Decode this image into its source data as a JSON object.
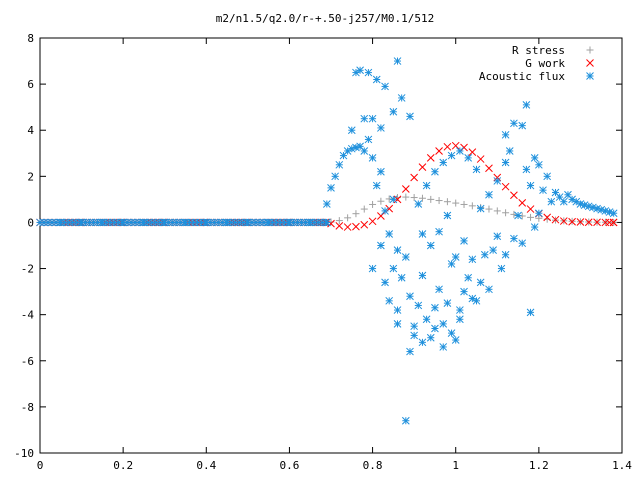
{
  "chart_data": {
    "type": "scatter",
    "title": "m2/n1.5/q2.0/r-+.50-j257/M0.1/512",
    "xlabel": "",
    "ylabel": "",
    "xlim": [
      0,
      1.4
    ],
    "ylim": [
      -10,
      8
    ],
    "x_ticks": [
      "0",
      "0.2",
      "0.4",
      "0.6",
      "0.8",
      "1",
      "1.2",
      "1.4"
    ],
    "y_ticks": [
      "-10",
      "-8",
      "-6",
      "-4",
      "-2",
      "0",
      "2",
      "4",
      "6",
      "8"
    ],
    "grid": false,
    "legend_position": "top-right",
    "series": [
      {
        "name": "R stress",
        "marker": "+",
        "color": "#a0a0a0",
        "points": [
          [
            0.0,
            0
          ],
          [
            0.1,
            0
          ],
          [
            0.2,
            0
          ],
          [
            0.3,
            0
          ],
          [
            0.4,
            0
          ],
          [
            0.5,
            0
          ],
          [
            0.6,
            0
          ],
          [
            0.69,
            0
          ],
          [
            0.7,
            0.02
          ],
          [
            0.72,
            0.08
          ],
          [
            0.74,
            0.2
          ],
          [
            0.76,
            0.38
          ],
          [
            0.78,
            0.58
          ],
          [
            0.8,
            0.78
          ],
          [
            0.82,
            0.92
          ],
          [
            0.84,
            1.02
          ],
          [
            0.86,
            1.08
          ],
          [
            0.88,
            1.1
          ],
          [
            0.9,
            1.08
          ],
          [
            0.92,
            1.05
          ],
          [
            0.94,
            1.0
          ],
          [
            0.96,
            0.95
          ],
          [
            0.98,
            0.9
          ],
          [
            1.0,
            0.84
          ],
          [
            1.02,
            0.78
          ],
          [
            1.04,
            0.72
          ],
          [
            1.06,
            0.65
          ],
          [
            1.08,
            0.58
          ],
          [
            1.1,
            0.5
          ],
          [
            1.12,
            0.42
          ],
          [
            1.14,
            0.35
          ],
          [
            1.16,
            0.28
          ],
          [
            1.18,
            0.22
          ],
          [
            1.2,
            0.18
          ],
          [
            1.22,
            0.14
          ],
          [
            1.24,
            0.1
          ],
          [
            1.26,
            0.07
          ],
          [
            1.28,
            0.05
          ],
          [
            1.3,
            0.03
          ],
          [
            1.32,
            0.02
          ],
          [
            1.34,
            0.01
          ],
          [
            1.36,
            0.01
          ],
          [
            1.38,
            0.0
          ]
        ]
      },
      {
        "name": "G work",
        "marker": "x",
        "color": "#ff0000",
        "points": [
          [
            0.0,
            0
          ],
          [
            0.1,
            0
          ],
          [
            0.2,
            0
          ],
          [
            0.3,
            0
          ],
          [
            0.4,
            0
          ],
          [
            0.5,
            0
          ],
          [
            0.6,
            0
          ],
          [
            0.69,
            0
          ],
          [
            0.7,
            -0.05
          ],
          [
            0.72,
            -0.15
          ],
          [
            0.74,
            -0.2
          ],
          [
            0.76,
            -0.18
          ],
          [
            0.78,
            -0.1
          ],
          [
            0.8,
            0.05
          ],
          [
            0.82,
            0.28
          ],
          [
            0.84,
            0.6
          ],
          [
            0.86,
            1.0
          ],
          [
            0.88,
            1.45
          ],
          [
            0.9,
            1.95
          ],
          [
            0.92,
            2.4
          ],
          [
            0.94,
            2.8
          ],
          [
            0.96,
            3.1
          ],
          [
            0.98,
            3.28
          ],
          [
            1.0,
            3.33
          ],
          [
            1.02,
            3.25
          ],
          [
            1.04,
            3.05
          ],
          [
            1.06,
            2.75
          ],
          [
            1.08,
            2.35
          ],
          [
            1.1,
            1.95
          ],
          [
            1.12,
            1.55
          ],
          [
            1.14,
            1.18
          ],
          [
            1.16,
            0.85
          ],
          [
            1.18,
            0.58
          ],
          [
            1.2,
            0.38
          ],
          [
            1.22,
            0.22
          ],
          [
            1.24,
            0.12
          ],
          [
            1.26,
            0.06
          ],
          [
            1.28,
            0.03
          ],
          [
            1.3,
            0.02
          ],
          [
            1.32,
            0.01
          ],
          [
            1.34,
            0.01
          ],
          [
            1.36,
            0.0
          ],
          [
            1.38,
            0.0
          ]
        ]
      },
      {
        "name": "Acoustic flux",
        "marker": "*",
        "color": "#1e90dc",
        "points": [
          [
            0.0,
            0
          ],
          [
            0.05,
            0
          ],
          [
            0.1,
            0
          ],
          [
            0.15,
            0
          ],
          [
            0.2,
            0
          ],
          [
            0.25,
            0
          ],
          [
            0.3,
            0
          ],
          [
            0.35,
            0
          ],
          [
            0.4,
            0
          ],
          [
            0.45,
            0
          ],
          [
            0.5,
            0
          ],
          [
            0.55,
            0
          ],
          [
            0.6,
            0
          ],
          [
            0.65,
            0
          ],
          [
            0.69,
            0
          ],
          [
            0.69,
            0.8
          ],
          [
            0.7,
            1.5
          ],
          [
            0.71,
            2.0
          ],
          [
            0.72,
            2.5
          ],
          [
            0.73,
            2.9
          ],
          [
            0.74,
            3.1
          ],
          [
            0.75,
            3.2
          ],
          [
            0.76,
            3.25
          ],
          [
            0.77,
            3.3
          ],
          [
            0.78,
            3.1
          ],
          [
            0.75,
            4.0
          ],
          [
            0.78,
            4.5
          ],
          [
            0.76,
            6.5
          ],
          [
            0.77,
            6.6
          ],
          [
            0.79,
            6.5
          ],
          [
            0.81,
            6.2
          ],
          [
            0.83,
            5.9
          ],
          [
            0.86,
            7.0
          ],
          [
            0.8,
            4.5
          ],
          [
            0.82,
            4.1
          ],
          [
            0.85,
            4.8
          ],
          [
            0.87,
            5.4
          ],
          [
            0.89,
            4.6
          ],
          [
            0.79,
            3.6
          ],
          [
            0.8,
            2.8
          ],
          [
            0.81,
            1.6
          ],
          [
            0.82,
            2.2
          ],
          [
            0.83,
            0.5
          ],
          [
            0.84,
            -0.5
          ],
          [
            0.85,
            1.0
          ],
          [
            0.86,
            -1.2
          ],
          [
            0.8,
            -2.0
          ],
          [
            0.82,
            -1.0
          ],
          [
            0.83,
            -2.6
          ],
          [
            0.84,
            -3.4
          ],
          [
            0.85,
            -2.0
          ],
          [
            0.86,
            -3.8
          ],
          [
            0.87,
            -2.4
          ],
          [
            0.88,
            -1.5
          ],
          [
            0.89,
            -3.2
          ],
          [
            0.9,
            -4.5
          ],
          [
            0.91,
            -3.6
          ],
          [
            0.92,
            -2.3
          ],
          [
            0.93,
            -4.2
          ],
          [
            0.94,
            -5.0
          ],
          [
            0.95,
            -3.7
          ],
          [
            0.96,
            -2.9
          ],
          [
            0.97,
            -4.4
          ],
          [
            0.98,
            -3.5
          ],
          [
            0.99,
            -1.8
          ],
          [
            1.0,
            -5.1
          ],
          [
            1.01,
            -4.2
          ],
          [
            1.02,
            -3.0
          ],
          [
            1.03,
            -2.4
          ],
          [
            1.04,
            -1.6
          ],
          [
            1.05,
            -3.4
          ],
          [
            1.06,
            -2.6
          ],
          [
            1.07,
            -1.4
          ],
          [
            1.08,
            -2.9
          ],
          [
            1.09,
            -1.2
          ],
          [
            1.1,
            -0.6
          ],
          [
            1.11,
            -2.0
          ],
          [
            0.89,
            -5.6
          ],
          [
            0.9,
            -4.9
          ],
          [
            0.92,
            -5.2
          ],
          [
            0.95,
            -4.6
          ],
          [
            0.97,
            -5.4
          ],
          [
            0.99,
            -4.8
          ],
          [
            1.01,
            -3.8
          ],
          [
            1.04,
            -3.3
          ],
          [
            0.86,
            -4.4
          ],
          [
            0.88,
            -8.6
          ],
          [
            0.91,
            0.8
          ],
          [
            0.93,
            1.6
          ],
          [
            0.95,
            2.2
          ],
          [
            0.97,
            2.6
          ],
          [
            0.99,
            2.9
          ],
          [
            1.01,
            3.1
          ],
          [
            1.03,
            2.8
          ],
          [
            1.05,
            2.3
          ],
          [
            0.92,
            -0.5
          ],
          [
            0.94,
            -1.0
          ],
          [
            0.96,
            -0.4
          ],
          [
            0.98,
            0.3
          ],
          [
            1.0,
            -1.5
          ],
          [
            1.02,
            -0.8
          ],
          [
            1.06,
            0.6
          ],
          [
            1.08,
            1.2
          ],
          [
            1.1,
            1.8
          ],
          [
            1.12,
            2.6
          ],
          [
            1.13,
            3.1
          ],
          [
            1.12,
            3.8
          ],
          [
            1.14,
            4.3
          ],
          [
            1.16,
            4.2
          ],
          [
            1.17,
            5.1
          ],
          [
            1.12,
            -1.4
          ],
          [
            1.14,
            -0.7
          ],
          [
            1.16,
            -0.9
          ],
          [
            1.18,
            -3.9
          ],
          [
            1.19,
            -0.2
          ],
          [
            1.2,
            0.4
          ],
          [
            1.21,
            1.4
          ],
          [
            1.22,
            2.0
          ],
          [
            1.17,
            2.3
          ],
          [
            1.18,
            1.6
          ],
          [
            1.19,
            2.8
          ],
          [
            1.2,
            2.5
          ],
          [
            1.15,
            0.3
          ],
          [
            1.23,
            0.9
          ],
          [
            1.24,
            1.3
          ],
          [
            1.25,
            1.1
          ],
          [
            1.26,
            0.9
          ],
          [
            1.27,
            1.2
          ],
          [
            1.28,
            1.0
          ],
          [
            1.29,
            0.9
          ],
          [
            1.3,
            0.8
          ],
          [
            1.31,
            0.75
          ],
          [
            1.32,
            0.7
          ],
          [
            1.33,
            0.65
          ],
          [
            1.34,
            0.6
          ],
          [
            1.35,
            0.55
          ],
          [
            1.36,
            0.5
          ],
          [
            1.37,
            0.45
          ],
          [
            1.38,
            0.4
          ]
        ]
      }
    ]
  }
}
